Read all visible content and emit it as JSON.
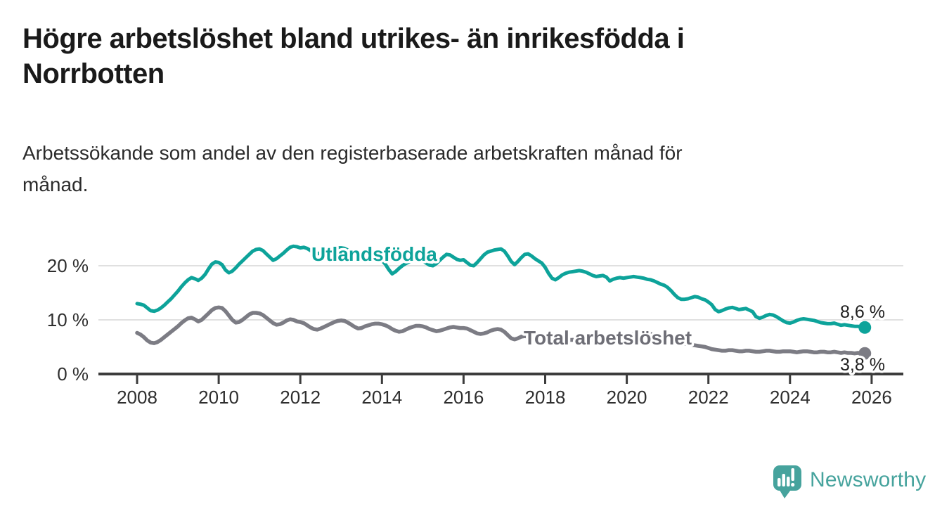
{
  "header": {
    "title": "Högre arbetslöshet bland utrikes- än inrikesfödda i Norrbotten",
    "subtitle": "Arbetssökande som andel av den registerbaserade arbetskraften månad för månad."
  },
  "footer": {
    "brand": "Newsworthy",
    "logo_icon": "speech-bubble-bar-chart-icon"
  },
  "colors": {
    "series_utlandsfodda": "#0DA39A",
    "series_total": "#7C7C84",
    "series_total_label": "#6E6E76",
    "axis": "#3C3C3C",
    "grid": "#DCDCDC",
    "title_text": "#1A1A1A",
    "logo_teal": "#46A39D",
    "background": "#FFFFFF"
  },
  "chart_data": {
    "type": "line",
    "unit": "%",
    "x_start_year": 2008,
    "points_per_year": 12,
    "x_end_label": "Nov 2025",
    "ylim": [
      0,
      25
    ],
    "grid": "horizontal",
    "legend_position": "inline-labels",
    "x_ticks": [
      "2008",
      "2010",
      "2012",
      "2014",
      "2016",
      "2018",
      "2020",
      "2022",
      "2024",
      "2026"
    ],
    "y_ticks": [
      {
        "value": 0,
        "label": "0 %"
      },
      {
        "value": 10,
        "label": "10 %"
      },
      {
        "value": 20,
        "label": "20 %"
      }
    ],
    "series": [
      {
        "name": "Utlandsfödda",
        "color": "#0DA39A",
        "end_label": "8,6 %",
        "end_value": 8.6,
        "values": [
          13.0,
          12.9,
          12.7,
          12.2,
          11.7,
          11.6,
          11.8,
          12.2,
          12.7,
          13.3,
          13.9,
          14.6,
          15.3,
          16.1,
          16.8,
          17.4,
          17.8,
          17.6,
          17.3,
          17.7,
          18.4,
          19.4,
          20.3,
          20.7,
          20.6,
          20.2,
          19.2,
          18.7,
          19.0,
          19.6,
          20.3,
          20.9,
          21.5,
          22.1,
          22.7,
          23.0,
          23.1,
          22.8,
          22.2,
          21.6,
          21.0,
          21.3,
          21.8,
          22.3,
          22.9,
          23.4,
          23.6,
          23.5,
          23.3,
          23.4,
          23.2,
          22.8,
          22.4,
          22.2,
          22.4,
          22.7,
          23.0,
          23.2,
          23.3,
          23.3,
          23.3,
          23.2,
          22.9,
          22.5,
          22.1,
          21.9,
          22.0,
          22.2,
          22.3,
          22.2,
          21.9,
          21.5,
          21.0,
          20.3,
          19.3,
          18.5,
          18.9,
          19.5,
          20.0,
          20.4,
          20.7,
          20.9,
          21.0,
          21.1,
          20.9,
          20.5,
          20.1,
          20.0,
          20.4,
          21.0,
          21.6,
          22.1,
          22.0,
          21.6,
          21.2,
          21.0,
          21.1,
          20.6,
          20.1,
          20.0,
          20.6,
          21.3,
          22.0,
          22.5,
          22.7,
          22.9,
          23.0,
          23.1,
          22.7,
          21.8,
          20.8,
          20.2,
          20.8,
          21.5,
          22.1,
          22.2,
          21.8,
          21.3,
          20.9,
          20.5,
          19.7,
          18.6,
          17.7,
          17.4,
          17.8,
          18.3,
          18.6,
          18.8,
          18.9,
          19.0,
          19.1,
          19.0,
          18.8,
          18.5,
          18.2,
          18.0,
          18.1,
          18.2,
          17.9,
          17.2,
          17.5,
          17.7,
          17.8,
          17.7,
          17.8,
          17.9,
          18.0,
          17.9,
          17.8,
          17.7,
          17.5,
          17.4,
          17.2,
          16.9,
          16.6,
          16.4,
          16.0,
          15.4,
          14.7,
          14.1,
          13.8,
          13.8,
          13.9,
          14.1,
          14.3,
          14.2,
          13.9,
          13.7,
          13.3,
          12.8,
          11.9,
          11.5,
          11.7,
          12.0,
          12.2,
          12.3,
          12.1,
          11.9,
          12.0,
          12.1,
          11.8,
          11.5,
          10.6,
          10.3,
          10.5,
          10.8,
          11.0,
          10.9,
          10.6,
          10.2,
          9.8,
          9.5,
          9.4,
          9.6,
          9.9,
          10.1,
          10.2,
          10.1,
          10.0,
          9.9,
          9.7,
          9.5,
          9.4,
          9.3,
          9.3,
          9.4,
          9.2,
          9.0,
          9.1,
          9.0,
          8.9,
          8.8,
          8.8,
          8.7,
          8.6
        ]
      },
      {
        "name": "Total arbetslöshet",
        "color": "#7C7C84",
        "end_label": "3,8 %",
        "end_value": 3.8,
        "values": [
          7.6,
          7.3,
          6.8,
          6.2,
          5.8,
          5.7,
          5.9,
          6.3,
          6.8,
          7.3,
          7.8,
          8.3,
          8.8,
          9.4,
          9.9,
          10.3,
          10.4,
          10.1,
          9.7,
          10.0,
          10.6,
          11.2,
          11.8,
          12.2,
          12.3,
          12.2,
          11.6,
          10.8,
          10.0,
          9.5,
          9.6,
          10.0,
          10.5,
          11.0,
          11.3,
          11.3,
          11.2,
          10.9,
          10.4,
          9.9,
          9.4,
          9.1,
          9.2,
          9.5,
          9.9,
          10.1,
          10.0,
          9.7,
          9.6,
          9.4,
          9.0,
          8.6,
          8.3,
          8.2,
          8.4,
          8.7,
          9.0,
          9.3,
          9.6,
          9.8,
          9.9,
          9.8,
          9.5,
          9.1,
          8.7,
          8.4,
          8.5,
          8.8,
          9.0,
          9.2,
          9.3,
          9.3,
          9.2,
          9.0,
          8.7,
          8.3,
          8.0,
          7.8,
          7.9,
          8.2,
          8.5,
          8.7,
          8.9,
          8.9,
          8.8,
          8.6,
          8.3,
          8.1,
          7.9,
          8.0,
          8.2,
          8.4,
          8.6,
          8.7,
          8.6,
          8.5,
          8.5,
          8.4,
          8.1,
          7.8,
          7.5,
          7.4,
          7.5,
          7.7,
          8.0,
          8.2,
          8.3,
          8.2,
          7.8,
          7.2,
          6.6,
          6.4,
          6.6,
          6.9,
          7.0,
          6.9,
          6.8,
          6.6,
          6.5,
          6.4,
          6.3,
          6.2,
          6.0,
          5.9,
          6.0,
          6.1,
          6.2,
          6.3,
          6.3,
          6.4,
          6.4,
          6.3,
          6.3,
          6.2,
          6.2,
          6.3,
          6.3,
          6.4,
          6.4,
          6.3,
          6.3,
          6.4,
          6.5,
          6.6,
          6.8,
          7.0,
          7.4,
          7.6,
          7.7,
          7.6,
          7.5,
          7.4,
          7.2,
          7.0,
          6.8,
          6.7,
          6.6,
          6.4,
          6.2,
          6.0,
          5.8,
          5.6,
          5.5,
          5.4,
          5.3,
          5.2,
          5.1,
          5.0,
          4.8,
          4.6,
          4.5,
          4.4,
          4.3,
          4.3,
          4.4,
          4.4,
          4.3,
          4.2,
          4.2,
          4.3,
          4.3,
          4.2,
          4.1,
          4.1,
          4.2,
          4.3,
          4.3,
          4.2,
          4.1,
          4.1,
          4.2,
          4.2,
          4.2,
          4.1,
          4.0,
          4.1,
          4.2,
          4.2,
          4.1,
          4.0,
          4.0,
          4.1,
          4.1,
          4.0,
          4.0,
          4.1,
          4.0,
          3.9,
          4.0,
          3.9,
          3.9,
          3.8,
          3.9,
          3.8,
          3.8
        ]
      }
    ]
  }
}
